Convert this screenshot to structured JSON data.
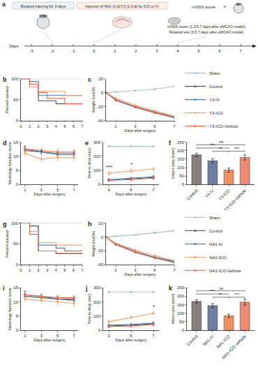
{
  "panel_a": {
    "panel": "a",
    "steps": [
      "Rotarod training for 3 days",
      "Injection of NA1 (1 d)/Y3 (1-3 d) by ICO or IV",
      "mNSS score (1,3,5,7 days after pMCAO model)",
      "Rotarod test (3,5,7 days after pMCAO model)"
    ],
    "tests": [
      "mNSS score",
      "+"
    ],
    "axis_label": "Days",
    "days": [
      -3,
      -2,
      -1,
      0,
      1,
      2,
      3,
      4,
      5,
      6,
      7
    ]
  },
  "chart_data": [
    {
      "panel": "b",
      "type": "line",
      "line_style": "step",
      "grid": false,
      "y_label": "Percent survival",
      "x": [
        0,
        1,
        2,
        3,
        4,
        5,
        6,
        7
      ],
      "xlim": [
        0,
        7
      ],
      "xticks": [
        0,
        1,
        2,
        3,
        4,
        5,
        6,
        7
      ],
      "ylim": [
        0,
        100
      ],
      "yticks": [
        0,
        50,
        100
      ],
      "series": [
        {
          "name": "Sham",
          "color": "#a6bfcb",
          "values": [
            100,
            100,
            100,
            100,
            100,
            100,
            100,
            100
          ]
        },
        {
          "name": "Control",
          "color": "#555555",
          "values": [
            100,
            87,
            47,
            47,
            40,
            40,
            40,
            40
          ]
        },
        {
          "name": "Y3-IV",
          "color": "#4a78a8",
          "values": [
            100,
            93,
            60,
            60,
            60,
            60,
            60,
            60
          ]
        },
        {
          "name": "Y3-ICO",
          "color": "#f2a36f",
          "values": [
            100,
            80,
            70,
            70,
            70,
            60,
            60,
            60
          ]
        },
        {
          "name": "Y3-ICO-Vehicle",
          "color": "#e8694a",
          "values": [
            100,
            87,
            67,
            53,
            53,
            40,
            40,
            40
          ]
        }
      ]
    },
    {
      "panel": "c",
      "type": "line",
      "marker": "circle",
      "grid": false,
      "legend": "right",
      "y_label": "Weight loss(%)",
      "x_label": "Days after surgery",
      "x": [
        0,
        1,
        3,
        5,
        7
      ],
      "xlim": [
        0,
        7
      ],
      "xticks": [
        1,
        3,
        5,
        7
      ],
      "ylim": [
        -40,
        20
      ],
      "yticks": [
        -40,
        -20,
        0,
        20
      ],
      "series": [
        {
          "name": "Sham",
          "color": "#a6bfcb",
          "values": [
            0,
            1,
            3,
            5,
            9
          ]
        },
        {
          "name": "Control",
          "color": "#555555",
          "values": [
            0,
            -10,
            -20,
            -28,
            -35
          ]
        },
        {
          "name": "Y3-IV",
          "color": "#4a78a8",
          "values": [
            0,
            -11,
            -21,
            -29,
            -36
          ]
        },
        {
          "name": "Y3-ICO",
          "color": "#f2a36f",
          "values": [
            0,
            -8,
            -18,
            -26,
            -34
          ]
        },
        {
          "name": "Y3-ICO-Vehicle",
          "color": "#e8694a",
          "values": [
            0,
            -10,
            -20,
            -29,
            -35
          ]
        }
      ]
    },
    {
      "panel": "d",
      "type": "line",
      "marker": "circle",
      "grid": false,
      "y_label": "Neurology function score",
      "x_label": "Days after surgery",
      "x": [
        1,
        3,
        5,
        7
      ],
      "xlim": [
        0.5,
        7.5
      ],
      "xticks": [
        1,
        3,
        5,
        7
      ],
      "ylim": [
        0,
        15
      ],
      "yticks": [
        0,
        5,
        10,
        15
      ],
      "series": [
        {
          "name": "Control",
          "color": "#555555",
          "values": [
            12,
            11.5,
            11,
            11
          ],
          "errors": [
            0.8,
            0.8,
            0.9,
            0.9
          ]
        },
        {
          "name": "Y3-IV",
          "color": "#4a78a8",
          "values": [
            12.5,
            11.5,
            10.5,
            10.5
          ],
          "errors": [
            0.6,
            0.8,
            0.9,
            0.9
          ]
        },
        {
          "name": "Y3-ICO",
          "color": "#f2a36f",
          "values": [
            11,
            9,
            9.5,
            9.5
          ],
          "errors": [
            0.8,
            1,
            1,
            1
          ]
        },
        {
          "name": "Y3-ICO-Vehicle",
          "color": "#e8694a",
          "values": [
            12.5,
            12,
            11.5,
            11.5
          ],
          "errors": [
            0.6,
            0.7,
            0.8,
            0.8
          ]
        }
      ],
      "annotations": [
        {
          "x": 1,
          "text": "*"
        },
        {
          "x": 3,
          "text": "*"
        }
      ]
    },
    {
      "panel": "e",
      "type": "line",
      "marker": "circle",
      "grid": false,
      "y_label": "Time to drop (sec)",
      "x_label": "Days after surgery",
      "x": [
        3,
        5,
        7
      ],
      "xlim": [
        2.5,
        7.5
      ],
      "xticks": [
        3,
        5,
        7
      ],
      "ylim": [
        0,
        300
      ],
      "yticks": [
        0,
        100,
        200,
        300
      ],
      "series": [
        {
          "name": "Sham",
          "color": "#a6bfcb",
          "values": [
            270,
            270,
            270
          ],
          "errors": [
            6,
            6,
            6
          ]
        },
        {
          "name": "Control",
          "color": "#555555",
          "values": [
            30,
            40,
            50
          ],
          "errors": [
            8,
            9,
            10
          ]
        },
        {
          "name": "Y3-IV",
          "color": "#4a78a8",
          "values": [
            35,
            45,
            55
          ],
          "errors": [
            8,
            9,
            10
          ]
        },
        {
          "name": "Y3-ICO",
          "color": "#f2a36f",
          "values": [
            80,
            95,
            110
          ],
          "errors": [
            12,
            14,
            15
          ]
        },
        {
          "name": "Y3-ICO-Vehicle",
          "color": "#e8694a",
          "values": [
            30,
            35,
            45
          ],
          "errors": [
            7,
            8,
            9
          ]
        }
      ],
      "annotations": [
        {
          "x": 3,
          "text": "***"
        },
        {
          "x": 5,
          "text": "*"
        }
      ]
    },
    {
      "panel": "f",
      "type": "bar",
      "grid": false,
      "y_label": "Infarct area (mm²)",
      "categories": [
        "Control",
        "Y3-IV",
        "Y3-ICO",
        "Y3-ICO-Vehicle"
      ],
      "values": [
        175,
        140,
        85,
        160
      ],
      "errors": [
        10,
        12,
        12,
        15
      ],
      "colors": [
        "#8a7f7c",
        "#6f7fa3",
        "#f0915f",
        "#ef8a72"
      ],
      "ylim": [
        0,
        250
      ],
      "yticks": [
        0,
        50,
        100,
        150,
        200,
        250
      ],
      "comparisons": [
        {
          "from": "Y3-IV",
          "to": "Y3-ICO",
          "text": "**"
        },
        {
          "from": "Y3-ICO",
          "to": "Y3-ICO-Vehicle",
          "text": "***"
        },
        {
          "from": "Control",
          "to": "Y3-ICO",
          "text": "***"
        },
        {
          "from": "Control",
          "to": "Y3-ICO-Vehicle",
          "text": "ns"
        }
      ]
    },
    {
      "panel": "g",
      "type": "line",
      "line_style": "step",
      "grid": false,
      "y_label": "Percent survival",
      "x": [
        0,
        1,
        2,
        3,
        4,
        5,
        6,
        7
      ],
      "xlim": [
        0,
        7
      ],
      "xticks": [
        0,
        1,
        2,
        3,
        4,
        5,
        6,
        7
      ],
      "ylim": [
        0,
        100
      ],
      "yticks": [
        0,
        50,
        100
      ],
      "series": [
        {
          "name": "Sham",
          "color": "#a6bfcb",
          "values": [
            100,
            100,
            100,
            100,
            100,
            100,
            100,
            100
          ]
        },
        {
          "name": "Control",
          "color": "#555555",
          "values": [
            100,
            93,
            33,
            33,
            27,
            27,
            27,
            27
          ]
        },
        {
          "name": "NA1-IV",
          "color": "#4a78a8",
          "values": [
            100,
            93,
            47,
            47,
            40,
            33,
            33,
            33
          ]
        },
        {
          "name": "NA1-ICO",
          "color": "#f2a36f",
          "values": [
            100,
            80,
            53,
            53,
            47,
            47,
            47,
            47
          ]
        },
        {
          "name": "NA1-ICO-Vehicle",
          "color": "#e8694a",
          "values": [
            100,
            73,
            33,
            33,
            27,
            27,
            27,
            27
          ]
        }
      ]
    },
    {
      "panel": "h",
      "type": "line",
      "marker": "circle",
      "grid": false,
      "legend": "right",
      "y_label": "Weight loss(%)",
      "x_label": "Days after surgery",
      "x": [
        0,
        1,
        3,
        5,
        7
      ],
      "xlim": [
        0,
        7
      ],
      "xticks": [
        1,
        3,
        5,
        7
      ],
      "ylim": [
        -40,
        20
      ],
      "yticks": [
        -40,
        -20,
        0,
        20
      ],
      "series": [
        {
          "name": "Sham",
          "color": "#a6bfcb",
          "values": [
            0,
            1,
            3,
            6,
            9
          ]
        },
        {
          "name": "Control",
          "color": "#555555",
          "values": [
            0,
            -11,
            -22,
            -30,
            -36
          ]
        },
        {
          "name": "NA1-IV",
          "color": "#4a78a8",
          "values": [
            0,
            -10,
            -21,
            -29,
            -35
          ]
        },
        {
          "name": "NA1-ICO",
          "color": "#f2a36f",
          "values": [
            0,
            -9,
            -19,
            -27,
            -34
          ]
        },
        {
          "name": "NA1-ICO-Vehicle",
          "color": "#e8694a",
          "values": [
            0,
            -11,
            -22,
            -30,
            -37
          ]
        }
      ]
    },
    {
      "panel": "i",
      "type": "line",
      "marker": "circle",
      "grid": false,
      "y_label": "Neurology function score",
      "x_label": "Days after surgery",
      "x": [
        1,
        3,
        5,
        7
      ],
      "xlim": [
        0.5,
        7.5
      ],
      "xticks": [
        1,
        3,
        5,
        7
      ],
      "ylim": [
        0,
        15
      ],
      "yticks": [
        0,
        5,
        10,
        15
      ],
      "series": [
        {
          "name": "Control",
          "color": "#555555",
          "values": [
            12,
            11.5,
            11,
            11
          ],
          "errors": [
            0.8,
            0.8,
            0.9,
            0.9
          ]
        },
        {
          "name": "NA1-IV",
          "color": "#4a78a8",
          "values": [
            12.5,
            12,
            11,
            10.5
          ],
          "errors": [
            0.6,
            0.8,
            0.9,
            0.9
          ]
        },
        {
          "name": "NA1-ICO",
          "color": "#f2a36f",
          "values": [
            11,
            10.5,
            10,
            9.5
          ],
          "errors": [
            0.8,
            1,
            1,
            1
          ]
        },
        {
          "name": "NA1-ICO-Vehicle",
          "color": "#e8694a",
          "values": [
            12.5,
            12,
            11.5,
            11.5
          ],
          "errors": [
            0.6,
            0.7,
            0.8,
            0.8
          ]
        }
      ],
      "annotations": [
        {
          "x": 1,
          "text": "*"
        }
      ]
    },
    {
      "panel": "j",
      "type": "line",
      "marker": "circle",
      "grid": false,
      "y_label": "Time to drop (sec)",
      "x_label": "Days after surgery",
      "x": [
        3,
        5,
        7
      ],
      "xlim": [
        2.5,
        7.5
      ],
      "xticks": [
        3,
        5,
        7
      ],
      "ylim": [
        0,
        300
      ],
      "yticks": [
        0,
        100,
        200,
        300
      ],
      "series": [
        {
          "name": "Sham",
          "color": "#a6bfcb",
          "values": [
            270,
            270,
            270
          ],
          "errors": [
            6,
            6,
            6
          ]
        },
        {
          "name": "Control",
          "color": "#555555",
          "values": [
            30,
            35,
            45
          ],
          "errors": [
            8,
            9,
            10
          ]
        },
        {
          "name": "NA1-IV",
          "color": "#4a78a8",
          "values": [
            35,
            40,
            50
          ],
          "errors": [
            8,
            9,
            10
          ]
        },
        {
          "name": "NA1-ICO",
          "color": "#f2a36f",
          "values": [
            60,
            90,
            120
          ],
          "errors": [
            12,
            14,
            15
          ]
        },
        {
          "name": "NA1-ICO-Vehicle",
          "color": "#e8694a",
          "values": [
            25,
            30,
            40
          ],
          "errors": [
            7,
            8,
            9
          ]
        }
      ],
      "annotations": [
        {
          "x": 7,
          "text": "*"
        }
      ]
    },
    {
      "panel": "k",
      "type": "bar",
      "grid": false,
      "y_label": "Infarct area (mm²)",
      "categories": [
        "Control",
        "NA1-IV",
        "NA1-ICO",
        "NA1-ICO-Vehicle"
      ],
      "values": [
        170,
        145,
        85,
        165
      ],
      "errors": [
        10,
        12,
        10,
        18
      ],
      "colors": [
        "#8a7f7c",
        "#6f7fa3",
        "#f0915f",
        "#ef8a72"
      ],
      "ylim": [
        0,
        250
      ],
      "yticks": [
        0,
        50,
        100,
        150,
        200,
        250
      ],
      "comparisons": [
        {
          "from": "NA1-IV",
          "to": "NA1-ICO",
          "text": "**"
        },
        {
          "from": "NA1-ICO",
          "to": "NA1-ICO-Vehicle",
          "text": "***"
        },
        {
          "from": "Control",
          "to": "NA1-ICO",
          "text": "***"
        },
        {
          "from": "Control",
          "to": "NA1-ICO-Vehicle",
          "text": "ns"
        }
      ]
    }
  ]
}
